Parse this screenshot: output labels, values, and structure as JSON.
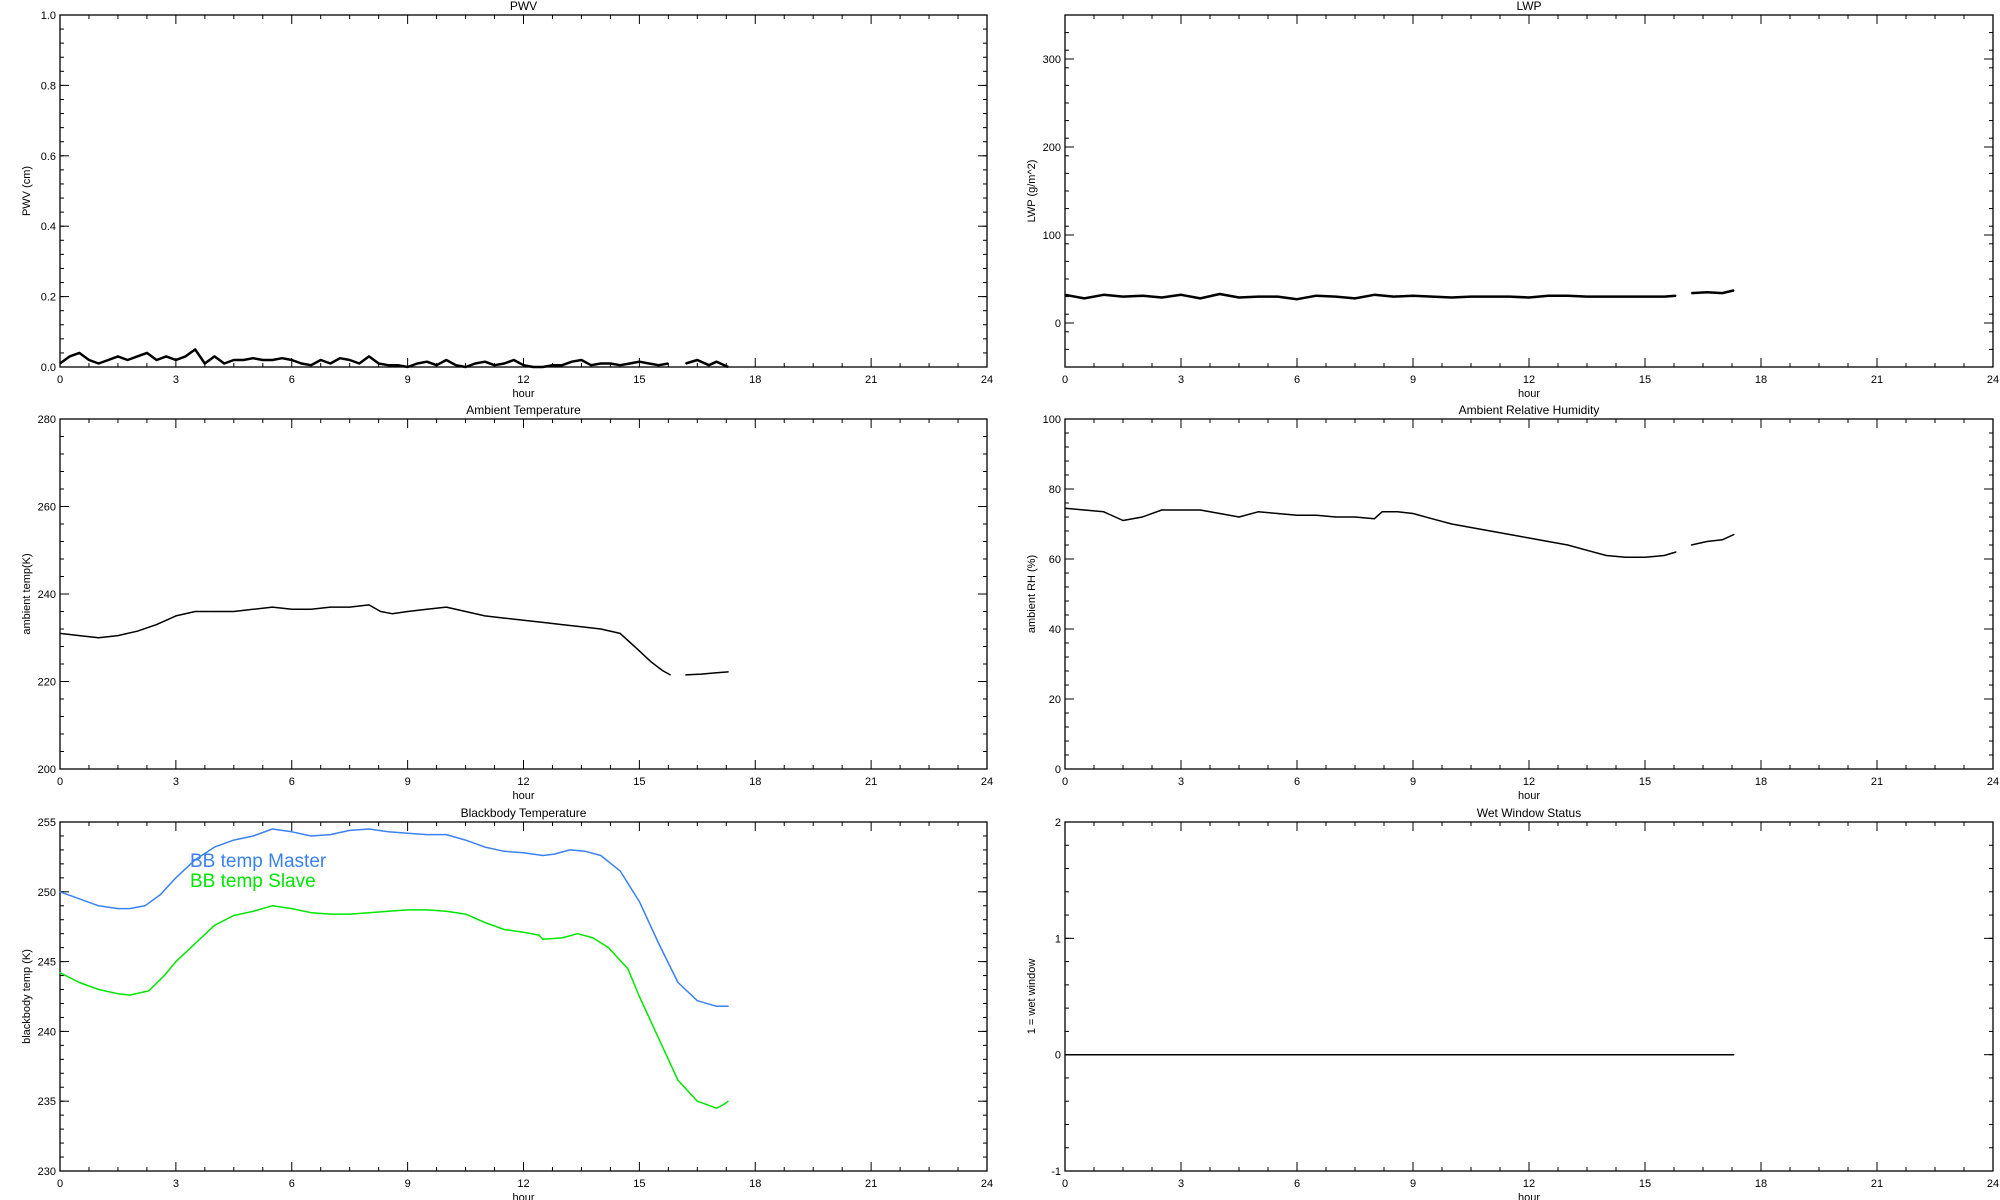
{
  "chart_data": [
    {
      "type": "line",
      "title": "PWV",
      "xlabel": "hour",
      "ylabel": "PWV (cm)",
      "xlim": [
        0,
        24
      ],
      "ylim": [
        0,
        1.0
      ],
      "xticks": [
        0,
        3,
        6,
        9,
        12,
        15,
        18,
        21,
        24
      ],
      "yticks": [
        "0.0",
        "0.2",
        "0.4",
        "0.6",
        "0.8",
        "1.0"
      ],
      "ytick_values": [
        0,
        0.2,
        0.4,
        0.6,
        0.8,
        1.0
      ],
      "series": [
        {
          "name": "PWV",
          "color": "#000000",
          "segments": [
            {
              "x": [
                0,
                0.25,
                0.5,
                0.75,
                1,
                1.25,
                1.5,
                1.75,
                2,
                2.25,
                2.5,
                2.75,
                3,
                3.25,
                3.5,
                3.75,
                4,
                4.25,
                4.5,
                4.75,
                5,
                5.25,
                5.5,
                5.75,
                6,
                6.25,
                6.5,
                6.75,
                7,
                7.25,
                7.5,
                7.75,
                8,
                8.25,
                8.5,
                8.75,
                9,
                9.25,
                9.5,
                9.75,
                10,
                10.25,
                10.5,
                10.75,
                11,
                11.25,
                11.5,
                11.75,
                12,
                12.25,
                12.5,
                12.75,
                13,
                13.25,
                13.5,
                13.75,
                14,
                14.25,
                14.5,
                14.75,
                15,
                15.25,
                15.5,
                15.75
              ],
              "y": [
                0.01,
                0.03,
                0.04,
                0.02,
                0.01,
                0.02,
                0.03,
                0.02,
                0.03,
                0.04,
                0.02,
                0.03,
                0.02,
                0.03,
                0.05,
                0.01,
                0.03,
                0.01,
                0.02,
                0.02,
                0.025,
                0.02,
                0.02,
                0.025,
                0.02,
                0.01,
                0.005,
                0.02,
                0.01,
                0.025,
                0.02,
                0.01,
                0.03,
                0.01,
                0.005,
                0.005,
                0.0,
                0.01,
                0.015,
                0.005,
                0.02,
                0.005,
                0.0,
                0.01,
                0.015,
                0.005,
                0.01,
                0.02,
                0.005,
                0.0,
                0.0,
                0.005,
                0.005,
                0.015,
                0.02,
                0.005,
                0.01,
                0.01,
                0.005,
                0.01,
                0.015,
                0.01,
                0.005,
                0.01
              ]
            },
            {
              "x": [
                16.2,
                16.5,
                16.8,
                17.0,
                17.3
              ],
              "y": [
                0.01,
                0.02,
                0.005,
                0.015,
                0.0
              ]
            }
          ]
        }
      ]
    },
    {
      "type": "line",
      "title": "LWP",
      "xlabel": "hour",
      "ylabel": "LWP (g/m^2)",
      "xlim": [
        0,
        24
      ],
      "ylim": [
        -50,
        350
      ],
      "xticks": [
        0,
        3,
        6,
        9,
        12,
        15,
        18,
        21,
        24
      ],
      "yticks": [
        "0",
        "100",
        "200",
        "300"
      ],
      "ytick_values": [
        0,
        100,
        200,
        300
      ],
      "series": [
        {
          "name": "LWP",
          "color": "#000000",
          "segments": [
            {
              "x": [
                0,
                0.5,
                1,
                1.5,
                2,
                2.5,
                3,
                3.5,
                4,
                4.5,
                5,
                5.5,
                6,
                6.5,
                7,
                7.5,
                8,
                8.5,
                9,
                9.5,
                10,
                10.5,
                11,
                11.5,
                12,
                12.5,
                13,
                13.5,
                14,
                14.5,
                15,
                15.5,
                15.8
              ],
              "y": [
                32,
                28,
                32,
                30,
                31,
                29,
                32,
                28,
                33,
                29,
                30,
                30,
                27,
                31,
                30,
                28,
                32,
                30,
                31,
                30,
                29,
                30,
                30,
                30,
                29,
                31,
                31,
                30,
                30,
                30,
                30,
                30,
                31
              ]
            },
            {
              "x": [
                16.2,
                16.6,
                17.0,
                17.3
              ],
              "y": [
                34,
                35,
                34,
                37
              ]
            }
          ]
        }
      ]
    },
    {
      "type": "line",
      "title": "Ambient Temperature",
      "xlabel": "hour",
      "ylabel": "ambient temp(K)",
      "xlim": [
        0,
        24
      ],
      "ylim": [
        200,
        280
      ],
      "xticks": [
        0,
        3,
        6,
        9,
        12,
        15,
        18,
        21,
        24
      ],
      "yticks": [
        "200",
        "220",
        "240",
        "260",
        "280"
      ],
      "ytick_values": [
        200,
        220,
        240,
        260,
        280
      ],
      "series": [
        {
          "name": "ambient temp",
          "color": "#000000",
          "segments": [
            {
              "x": [
                0,
                0.5,
                1,
                1.5,
                2,
                2.5,
                3,
                3.5,
                4,
                4.5,
                5,
                5.5,
                6,
                6.5,
                7,
                7.5,
                8,
                8.3,
                8.6,
                9,
                9.5,
                10,
                10.5,
                11,
                11.5,
                12,
                12.5,
                13,
                13.5,
                14,
                14.5,
                15,
                15.3,
                15.6,
                15.8
              ],
              "y": [
                231,
                230.5,
                230,
                230.5,
                231.5,
                233,
                235,
                236,
                236,
                236,
                236.5,
                237,
                236.5,
                236.5,
                237,
                237,
                237.5,
                236,
                235.5,
                236,
                236.5,
                237,
                236,
                235,
                234.5,
                234,
                233.5,
                233,
                232.5,
                232,
                231,
                227,
                224.5,
                222.5,
                221.5
              ]
            },
            {
              "x": [
                16.2,
                16.6,
                17.0,
                17.3
              ],
              "y": [
                221.5,
                221.7,
                222,
                222.2
              ]
            }
          ]
        }
      ]
    },
    {
      "type": "line",
      "title": "Ambient Relative Humidity",
      "xlabel": "hour",
      "ylabel": "ambient RH (%)",
      "xlim": [
        0,
        24
      ],
      "ylim": [
        0,
        100
      ],
      "xticks": [
        0,
        3,
        6,
        9,
        12,
        15,
        18,
        21,
        24
      ],
      "yticks": [
        "0",
        "20",
        "40",
        "60",
        "80",
        "100"
      ],
      "ytick_values": [
        0,
        20,
        40,
        60,
        80,
        100
      ],
      "series": [
        {
          "name": "ambient RH",
          "color": "#000000",
          "segments": [
            {
              "x": [
                0,
                0.5,
                1,
                1.5,
                2,
                2.5,
                3,
                3.5,
                4,
                4.5,
                5,
                5.5,
                6,
                6.5,
                7,
                7.5,
                8,
                8.2,
                8.6,
                9,
                9.5,
                10,
                10.5,
                11,
                11.5,
                12,
                12.5,
                13,
                13.5,
                14,
                14.5,
                15,
                15.5,
                15.8
              ],
              "y": [
                74.5,
                74,
                73.5,
                71,
                72,
                74,
                74,
                74,
                73,
                72,
                73.5,
                73,
                72.5,
                72.5,
                72,
                72,
                71.5,
                73.5,
                73.5,
                73,
                71.5,
                70,
                69,
                68,
                67,
                66,
                65,
                64,
                62.5,
                61,
                60.5,
                60.5,
                61,
                62
              ]
            },
            {
              "x": [
                16.2,
                16.6,
                17.0,
                17.3
              ],
              "y": [
                64,
                65,
                65.5,
                67
              ]
            }
          ]
        }
      ]
    },
    {
      "type": "line",
      "title": "Blackbody Temperature",
      "xlabel": "hour",
      "ylabel": "blackbody temp (K)",
      "xlim": [
        0,
        24
      ],
      "ylim": [
        230,
        255
      ],
      "xticks": [
        0,
        3,
        6,
        9,
        12,
        15,
        18,
        21,
        24
      ],
      "yticks": [
        "230",
        "235",
        "240",
        "245",
        "250",
        "255"
      ],
      "ytick_values": [
        230,
        235,
        240,
        245,
        250,
        255
      ],
      "legend": "top-left",
      "series": [
        {
          "name": "BB temp Master",
          "color": "#3b82f0",
          "segments": [
            {
              "x": [
                0,
                0.5,
                1,
                1.5,
                1.8,
                2.2,
                2.6,
                3,
                3.5,
                4,
                4.5,
                5,
                5.5,
                6,
                6.5,
                7,
                7.5,
                8,
                8.5,
                9,
                9.5,
                10,
                10.5,
                11,
                11.5,
                12,
                12.5,
                12.8,
                13.2,
                13.6,
                14,
                14.5,
                15,
                15.5,
                16,
                16.5,
                17,
                17.3
              ],
              "y": [
                250,
                249.5,
                249,
                248.8,
                248.8,
                249,
                249.8,
                251,
                252.3,
                253.2,
                253.7,
                254,
                254.5,
                254.3,
                254,
                254.1,
                254.4,
                254.5,
                254.3,
                254.2,
                254.1,
                254.1,
                253.7,
                253.2,
                252.9,
                252.8,
                252.6,
                252.7,
                253,
                252.9,
                252.6,
                251.5,
                249.3,
                246.3,
                243.5,
                242.2,
                241.8,
                241.8
              ]
            }
          ]
        },
        {
          "name": "BB temp Slave",
          "color": "#00e600",
          "segments": [
            {
              "x": [
                0,
                0.5,
                1,
                1.5,
                1.8,
                2.3,
                2.7,
                3,
                3.5,
                4,
                4.5,
                5,
                5.5,
                6,
                6.5,
                7,
                7.5,
                8,
                8.5,
                9,
                9.5,
                10,
                10.5,
                11,
                11.5,
                12,
                12.4,
                12.5,
                13,
                13.4,
                13.8,
                14.2,
                14.7,
                15,
                15.5,
                16,
                16.5,
                17,
                17.2,
                17.3
              ],
              "y": [
                244.2,
                243.5,
                243,
                242.7,
                242.6,
                242.9,
                244,
                245,
                246.3,
                247.6,
                248.3,
                248.6,
                249,
                248.8,
                248.5,
                248.4,
                248.4,
                248.5,
                248.6,
                248.7,
                248.7,
                248.6,
                248.4,
                247.8,
                247.3,
                247.1,
                246.9,
                246.6,
                246.7,
                247,
                246.7,
                246,
                244.5,
                242.5,
                239.5,
                236.5,
                235,
                234.5,
                234.8,
                235
              ]
            }
          ]
        }
      ]
    },
    {
      "type": "line",
      "title": "Wet Window Status",
      "xlabel": "hour",
      "ylabel": "1 = wet window",
      "xlim": [
        0,
        24
      ],
      "ylim": [
        -1,
        2
      ],
      "xticks": [
        0,
        3,
        6,
        9,
        12,
        15,
        18,
        21,
        24
      ],
      "yticks": [
        "-1",
        "0",
        "1",
        "2"
      ],
      "ytick_values": [
        -1,
        0,
        1,
        2
      ],
      "series": [
        {
          "name": "wet window",
          "color": "#000000",
          "segments": [
            {
              "x": [
                0,
                17.3
              ],
              "y": [
                0,
                0
              ]
            }
          ]
        }
      ]
    }
  ]
}
